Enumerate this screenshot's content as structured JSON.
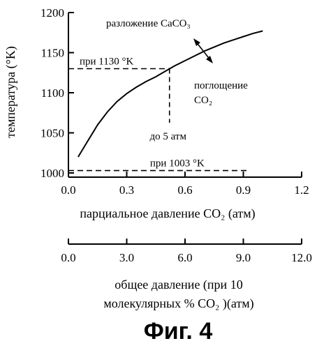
{
  "chart_data": [
    {
      "type": "line",
      "xlabel": "парциальное давление CO₂ (атм)",
      "ylabel": "температура (°K)",
      "xlim": [
        0.0,
        1.2
      ],
      "ylim": [
        1000,
        1200
      ],
      "x_ticks": [
        0.0,
        0.3,
        0.6,
        0.9,
        1.2
      ],
      "x_tick_labels": [
        "0.0",
        "0.3",
        "0.6",
        "0.9",
        "1.2"
      ],
      "y_ticks": [
        1000,
        1050,
        1100,
        1150,
        1200
      ],
      "y_tick_labels": [
        "1000",
        "1050",
        "1100",
        "1150",
        "1200"
      ],
      "grid": false,
      "series": [
        {
          "x": [
            0.05,
            0.1,
            0.15,
            0.2,
            0.25,
            0.3,
            0.35,
            0.4,
            0.45,
            0.5,
            0.55,
            0.6,
            0.65,
            0.7,
            0.75,
            0.8,
            0.85,
            0.9,
            0.95,
            1.0
          ],
          "y": [
            1020,
            1040,
            1060,
            1076,
            1089,
            1099,
            1107,
            1114,
            1120,
            1127,
            1134,
            1140,
            1146,
            1152,
            1157,
            1162,
            1166,
            1170,
            1174,
            1177
          ]
        }
      ],
      "reference_lines": [
        {
          "label": "при 1130 °K",
          "y": 1130,
          "x_from": 0.0,
          "x_to": 0.52,
          "style": "dashed"
        },
        {
          "label": "при 1003 °K",
          "y": 1003,
          "x_from": 0.0,
          "x_to": 0.93,
          "style": "dashed"
        },
        {
          "label": "до 5 атм",
          "x": 0.52,
          "y_from": 1080,
          "y_to": 1130,
          "style": "dashed"
        }
      ],
      "annotations": {
        "above": "разложение CaCO₃",
        "below_line1": "поглощение",
        "below_line2": "CO₂"
      }
    },
    {
      "type": "axis",
      "xlabel_line1": "общее давление (при 10",
      "xlabel_line2": "молекулярных % CO₂ )(атм)",
      "xlim": [
        0.0,
        12.0
      ],
      "x_ticks": [
        0.0,
        3.0,
        6.0,
        9.0,
        12.0
      ],
      "x_tick_labels": [
        "0.0",
        "3.0",
        "6.0",
        "9.0",
        "12.0"
      ]
    }
  ],
  "figure_label": "Фиг. 4"
}
